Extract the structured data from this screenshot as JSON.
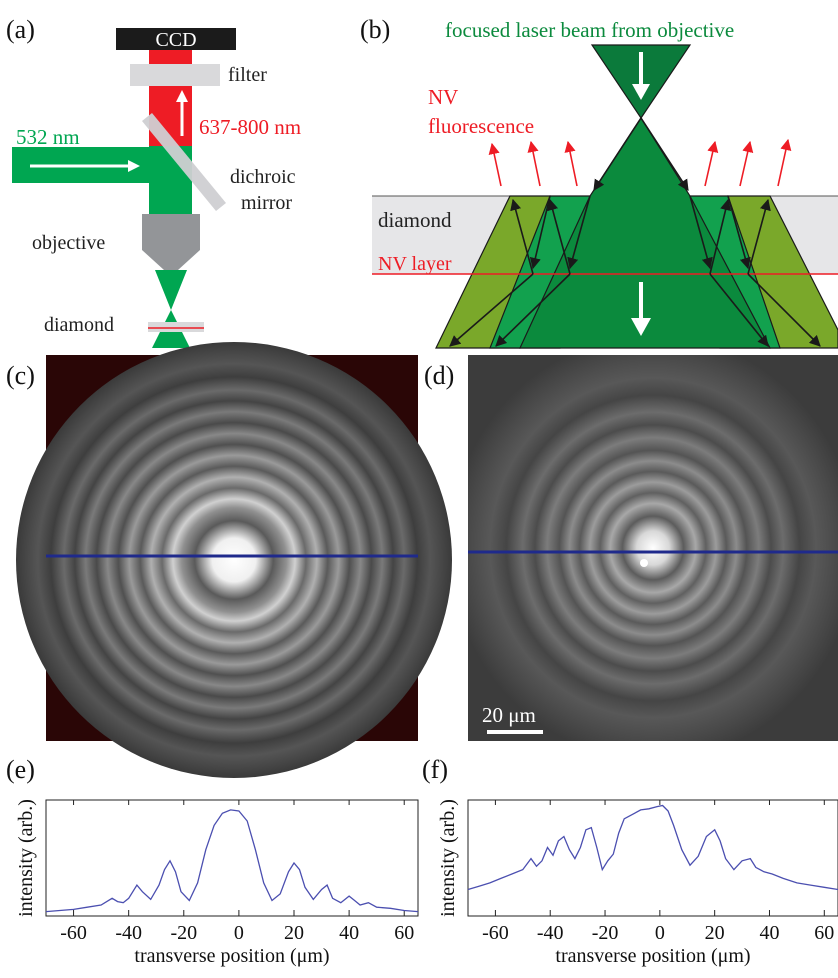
{
  "panels": {
    "a": {
      "tag": "(a)",
      "ccd": "CCD",
      "filter": "filter",
      "wavelength_emission": "637-800 nm",
      "wavelength_laser": "532 nm",
      "dichroic_line1": "dichroic",
      "dichroic_line2": "mirror",
      "objective": "objective",
      "diamond": "diamond"
    },
    "b": {
      "tag": "(b)",
      "beam_title": "focused laser beam from objective",
      "nv_fluor_line1": "NV",
      "nv_fluor_line2": "fluorescence",
      "diamond": "diamond",
      "nv_layer": "NV layer"
    },
    "c": {
      "tag": "(c)"
    },
    "d": {
      "tag": "(d)",
      "scalebar": "20 μm"
    },
    "e": {
      "tag": "(e)"
    },
    "f": {
      "tag": "(f)"
    }
  },
  "colors": {
    "laser_green": "#00a651",
    "dark_green": "#0b7a3b",
    "olive_green": "#7aa82a",
    "emission_red": "#ee1c25",
    "profile_blue": "#4b4fb0",
    "cut_line_blue": "#1f2a8c",
    "diamond_gray": "#e6e6e8"
  },
  "chart_data": [
    {
      "type": "line",
      "panel": "(e)",
      "xlabel": "transverse position (μm)",
      "ylabel": "intensity (arb.)",
      "xlim": [
        -70,
        65
      ],
      "ylim": [
        0,
        1.05
      ],
      "xticks": [
        -60,
        -40,
        -20,
        0,
        20,
        40,
        60
      ],
      "xtick_labels": [
        "-60",
        "-40",
        "-20",
        "0",
        "20",
        "40",
        "60"
      ],
      "x": [
        -70,
        -65,
        -60,
        -55,
        -50,
        -46,
        -44,
        -42,
        -40,
        -37,
        -35,
        -32,
        -29,
        -27,
        -25,
        -23,
        -21,
        -18,
        -15,
        -12,
        -9,
        -6,
        -3,
        0,
        3,
        6,
        9,
        12,
        15,
        18,
        20,
        22,
        24,
        27,
        30,
        32,
        34,
        37,
        40,
        42,
        44,
        47,
        50,
        55,
        60,
        65
      ],
      "y": [
        0.04,
        0.05,
        0.06,
        0.08,
        0.1,
        0.16,
        0.13,
        0.12,
        0.16,
        0.28,
        0.22,
        0.15,
        0.28,
        0.42,
        0.5,
        0.4,
        0.22,
        0.14,
        0.3,
        0.6,
        0.82,
        0.93,
        0.96,
        0.95,
        0.86,
        0.6,
        0.3,
        0.14,
        0.2,
        0.4,
        0.48,
        0.42,
        0.26,
        0.15,
        0.24,
        0.28,
        0.16,
        0.12,
        0.18,
        0.14,
        0.1,
        0.12,
        0.08,
        0.07,
        0.05,
        0.04
      ]
    },
    {
      "type": "line",
      "panel": "(f)",
      "xlabel": "transverse position (μm)",
      "ylabel": "intensity (arb.)",
      "xlim": [
        -70,
        65
      ],
      "ylim": [
        0,
        1.05
      ],
      "xticks": [
        -60,
        -40,
        -20,
        0,
        20,
        40,
        60
      ],
      "xtick_labels": [
        "-60",
        "-40",
        "-20",
        "0",
        "20",
        "40",
        "60"
      ],
      "x": [
        -70,
        -66,
        -62,
        -58,
        -54,
        -50,
        -47,
        -45,
        -43,
        -41,
        -39,
        -37,
        -35,
        -33,
        -31,
        -29,
        -27,
        -25,
        -23,
        -21,
        -19,
        -17,
        -15,
        -13,
        -10,
        -7,
        -4,
        -1,
        1,
        3,
        5,
        8,
        11,
        14,
        17,
        20,
        22,
        24,
        27,
        30,
        33,
        35,
        38,
        41,
        45,
        50,
        55,
        60,
        65
      ],
      "y": [
        0.24,
        0.27,
        0.3,
        0.34,
        0.38,
        0.42,
        0.52,
        0.45,
        0.5,
        0.62,
        0.55,
        0.68,
        0.72,
        0.6,
        0.52,
        0.62,
        0.78,
        0.8,
        0.62,
        0.42,
        0.5,
        0.56,
        0.75,
        0.88,
        0.92,
        0.96,
        0.97,
        0.99,
        1.0,
        0.95,
        0.82,
        0.6,
        0.46,
        0.54,
        0.72,
        0.78,
        0.68,
        0.52,
        0.42,
        0.5,
        0.52,
        0.44,
        0.4,
        0.38,
        0.34,
        0.3,
        0.28,
        0.26,
        0.24
      ]
    }
  ]
}
